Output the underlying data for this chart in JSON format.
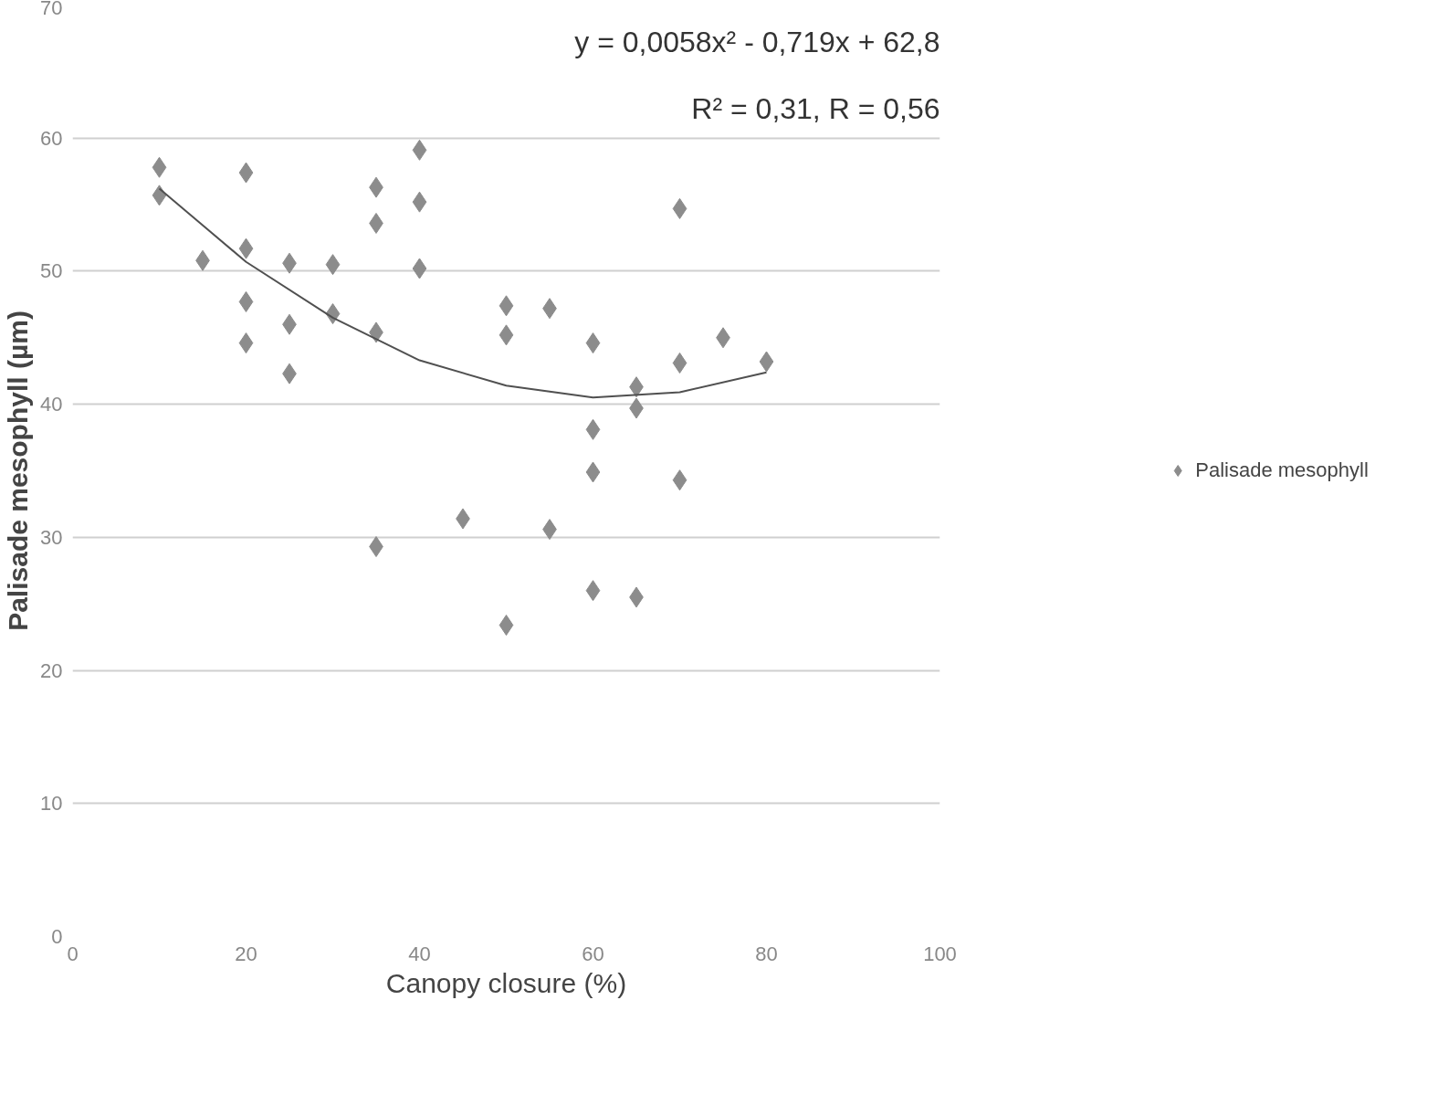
{
  "chart_data": {
    "type": "scatter",
    "xlabel": "Canopy closure (%)",
    "ylabel": "Palisade mesophyll (µm)",
    "xlim": [
      0,
      100
    ],
    "xticks": [
      0,
      20,
      40,
      60,
      80,
      100
    ],
    "ylim": [
      0,
      70
    ],
    "yticks": [
      0,
      10,
      20,
      30,
      40,
      50,
      60,
      70
    ],
    "grid": "y",
    "legend": "right",
    "marker": "diamond",
    "annotations": [
      "y = 0,0058x² - 0,719x + 62,8",
      "R² = 0,31, R = 0,56"
    ],
    "series": [
      {
        "name": "Palisade mesophyll",
        "color": "#8c8c8c",
        "x": [
          10,
          10,
          15,
          20,
          20,
          20,
          20,
          25,
          25,
          25,
          30,
          30,
          35,
          35,
          35,
          35,
          40,
          40,
          40,
          45,
          50,
          50,
          50,
          55,
          55,
          60,
          60,
          60,
          60,
          65,
          65,
          65,
          70,
          70,
          70,
          75,
          80
        ],
        "values": [
          57.8,
          55.7,
          50.8,
          57.4,
          51.7,
          47.7,
          44.6,
          50.6,
          46.0,
          42.3,
          50.5,
          46.8,
          56.3,
          53.6,
          45.4,
          29.3,
          59.1,
          55.2,
          50.2,
          31.4,
          47.4,
          45.2,
          23.4,
          47.2,
          30.6,
          44.6,
          38.1,
          34.9,
          26.0,
          41.3,
          39.7,
          25.5,
          54.7,
          43.1,
          34.3,
          45.0,
          43.2
        ]
      },
      {
        "color": "#505050",
        "type": "line",
        "marker": "none",
        "x": [
          10,
          20,
          30,
          40,
          50,
          60,
          70,
          80
        ],
        "values": [
          56.2,
          50.7,
          46.5,
          43.3,
          41.4,
          40.5,
          40.9,
          42.4
        ]
      }
    ]
  }
}
